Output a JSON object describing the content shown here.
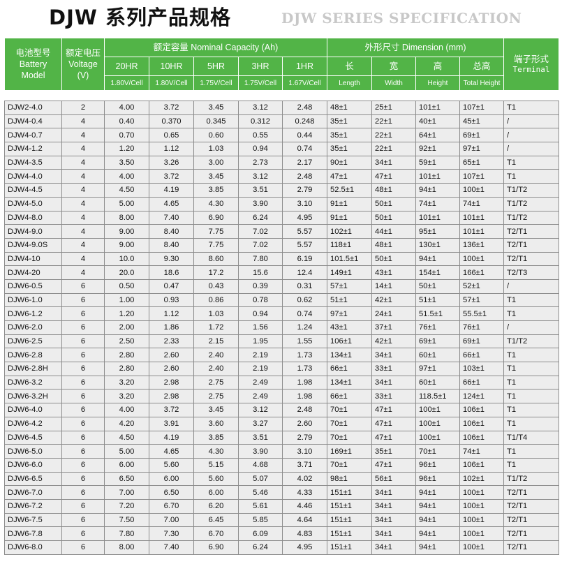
{
  "title": {
    "main": "DJW 系列产品规格",
    "sub": "DJW SERIES SPECIFICATION"
  },
  "header": {
    "model": [
      "电池型号",
      "Battery",
      "Model"
    ],
    "voltage": [
      "额定电压",
      "Voltage",
      "(V)"
    ],
    "capacity_title": "额定容量 Nominal Capacity (Ah)",
    "rates": [
      "20HR",
      "10HR",
      "5HR",
      "3HR",
      "1HR"
    ],
    "cutoffs": [
      "1.80V/Cell",
      "1.80V/Cell",
      "1.75V/Cell",
      "1.75V/Cell",
      "1.67V/Cell"
    ],
    "dimension_title": "外形尺寸 Dimension (mm)",
    "dims_cn": [
      "长",
      "宽",
      "高",
      "总高"
    ],
    "dims_en": [
      "Length",
      "Width",
      "Height",
      "Total Height"
    ],
    "terminal": [
      "端子形式",
      "Terminal"
    ]
  },
  "rows": [
    [
      "DJW2-4.0",
      "2",
      "4.00",
      "3.72",
      "3.45",
      "3.12",
      "2.48",
      "48±1",
      "25±1",
      "101±1",
      "107±1",
      "T1"
    ],
    [
      "DJW4-0.4",
      "4",
      "0.40",
      "0.370",
      "0.345",
      "0.312",
      "0.248",
      "35±1",
      "22±1",
      "40±1",
      "45±1",
      "/"
    ],
    [
      "DJW4-0.7",
      "4",
      "0.70",
      "0.65",
      "0.60",
      "0.55",
      "0.44",
      "35±1",
      "22±1",
      "64±1",
      "69±1",
      "/"
    ],
    [
      "DJW4-1.2",
      "4",
      "1.20",
      "1.12",
      "1.03",
      "0.94",
      "0.74",
      "35±1",
      "22±1",
      "92±1",
      "97±1",
      "/"
    ],
    [
      "DJW4-3.5",
      "4",
      "3.50",
      "3.26",
      "3.00",
      "2.73",
      "2.17",
      "90±1",
      "34±1",
      "59±1",
      "65±1",
      "T1"
    ],
    [
      "DJW4-4.0",
      "4",
      "4.00",
      "3.72",
      "3.45",
      "3.12",
      "2.48",
      "47±1",
      "47±1",
      "101±1",
      "107±1",
      "T1"
    ],
    [
      "DJW4-4.5",
      "4",
      "4.50",
      "4.19",
      "3.85",
      "3.51",
      "2.79",
      "52.5±1",
      "48±1",
      "94±1",
      "100±1",
      "T1/T2"
    ],
    [
      "DJW4-5.0",
      "4",
      "5.00",
      "4.65",
      "4.30",
      "3.90",
      "3.10",
      "91±1",
      "50±1",
      "74±1",
      "74±1",
      "T1/T2"
    ],
    [
      "DJW4-8.0",
      "4",
      "8.00",
      "7.40",
      "6.90",
      "6.24",
      "4.95",
      "91±1",
      "50±1",
      "101±1",
      "101±1",
      "T1/T2"
    ],
    [
      "DJW4-9.0",
      "4",
      "9.00",
      "8.40",
      "7.75",
      "7.02",
      "5.57",
      "102±1",
      "44±1",
      "95±1",
      "101±1",
      "T2/T1"
    ],
    [
      "DJW4-9.0S",
      "4",
      "9.00",
      "8.40",
      "7.75",
      "7.02",
      "5.57",
      "118±1",
      "48±1",
      "130±1",
      "136±1",
      "T2/T1"
    ],
    [
      "DJW4-10",
      "4",
      "10.0",
      "9.30",
      "8.60",
      "7.80",
      "6.19",
      "101.5±1",
      "50±1",
      "94±1",
      "100±1",
      "T2/T1"
    ],
    [
      "DJW4-20",
      "4",
      "20.0",
      "18.6",
      "17.2",
      "15.6",
      "12.4",
      "149±1",
      "43±1",
      "154±1",
      "166±1",
      "T2/T3"
    ],
    [
      "DJW6-0.5",
      "6",
      "0.50",
      "0.47",
      "0.43",
      "0.39",
      "0.31",
      "57±1",
      "14±1",
      "50±1",
      "52±1",
      "/"
    ],
    [
      "DJW6-1.0",
      "6",
      "1.00",
      "0.93",
      "0.86",
      "0.78",
      "0.62",
      "51±1",
      "42±1",
      "51±1",
      "57±1",
      "T1"
    ],
    [
      "DJW6-1.2",
      "6",
      "1.20",
      "1.12",
      "1.03",
      "0.94",
      "0.74",
      "97±1",
      "24±1",
      "51.5±1",
      "55.5±1",
      "T1"
    ],
    [
      "DJW6-2.0",
      "6",
      "2.00",
      "1.86",
      "1.72",
      "1.56",
      "1.24",
      "43±1",
      "37±1",
      "76±1",
      "76±1",
      "/"
    ],
    [
      "DJW6-2.5",
      "6",
      "2.50",
      "2.33",
      "2.15",
      "1.95",
      "1.55",
      "106±1",
      "42±1",
      "69±1",
      "69±1",
      "T1/T2"
    ],
    [
      "DJW6-2.8",
      "6",
      "2.80",
      "2.60",
      "2.40",
      "2.19",
      "1.73",
      "134±1",
      "34±1",
      "60±1",
      "66±1",
      "T1"
    ],
    [
      "DJW6-2.8H",
      "6",
      "2.80",
      "2.60",
      "2.40",
      "2.19",
      "1.73",
      "66±1",
      "33±1",
      "97±1",
      "103±1",
      "T1"
    ],
    [
      "DJW6-3.2",
      "6",
      "3.20",
      "2.98",
      "2.75",
      "2.49",
      "1.98",
      "134±1",
      "34±1",
      "60±1",
      "66±1",
      "T1"
    ],
    [
      "DJW6-3.2H",
      "6",
      "3.20",
      "2.98",
      "2.75",
      "2.49",
      "1.98",
      "66±1",
      "33±1",
      "118.5±1",
      "124±1",
      "T1"
    ],
    [
      "DJW6-4.0",
      "6",
      "4.00",
      "3.72",
      "3.45",
      "3.12",
      "2.48",
      "70±1",
      "47±1",
      "100±1",
      "106±1",
      "T1"
    ],
    [
      "DJW6-4.2",
      "6",
      "4.20",
      "3.91",
      "3.60",
      "3.27",
      "2.60",
      "70±1",
      "47±1",
      "100±1",
      "106±1",
      "T1"
    ],
    [
      "DJW6-4.5",
      "6",
      "4.50",
      "4.19",
      "3.85",
      "3.51",
      "2.79",
      "70±1",
      "47±1",
      "100±1",
      "106±1",
      "T1/T4"
    ],
    [
      "DJW6-5.0",
      "6",
      "5.00",
      "4.65",
      "4.30",
      "3.90",
      "3.10",
      "169±1",
      "35±1",
      "70±1",
      "74±1",
      "T1"
    ],
    [
      "DJW6-6.0",
      "6",
      "6.00",
      "5.60",
      "5.15",
      "4.68",
      "3.71",
      "70±1",
      "47±1",
      "96±1",
      "106±1",
      "T1"
    ],
    [
      "DJW6-6.5",
      "6",
      "6.50",
      "6.00",
      "5.60",
      "5.07",
      "4.02",
      "98±1",
      "56±1",
      "96±1",
      "102±1",
      "T1/T2"
    ],
    [
      "DJW6-7.0",
      "6",
      "7.00",
      "6.50",
      "6.00",
      "5.46",
      "4.33",
      "151±1",
      "34±1",
      "94±1",
      "100±1",
      "T2/T1"
    ],
    [
      "DJW6-7.2",
      "6",
      "7.20",
      "6.70",
      "6.20",
      "5.61",
      "4.46",
      "151±1",
      "34±1",
      "94±1",
      "100±1",
      "T2/T1"
    ],
    [
      "DJW6-7.5",
      "6",
      "7.50",
      "7.00",
      "6.45",
      "5.85",
      "4.64",
      "151±1",
      "34±1",
      "94±1",
      "100±1",
      "T2/T1"
    ],
    [
      "DJW6-7.8",
      "6",
      "7.80",
      "7.30",
      "6.70",
      "6.09",
      "4.83",
      "151±1",
      "34±1",
      "94±1",
      "100±1",
      "T2/T1"
    ],
    [
      "DJW6-8.0",
      "6",
      "8.00",
      "7.40",
      "6.90",
      "6.24",
      "4.95",
      "151±1",
      "34±1",
      "94±1",
      "100±1",
      "T2/T1"
    ]
  ]
}
